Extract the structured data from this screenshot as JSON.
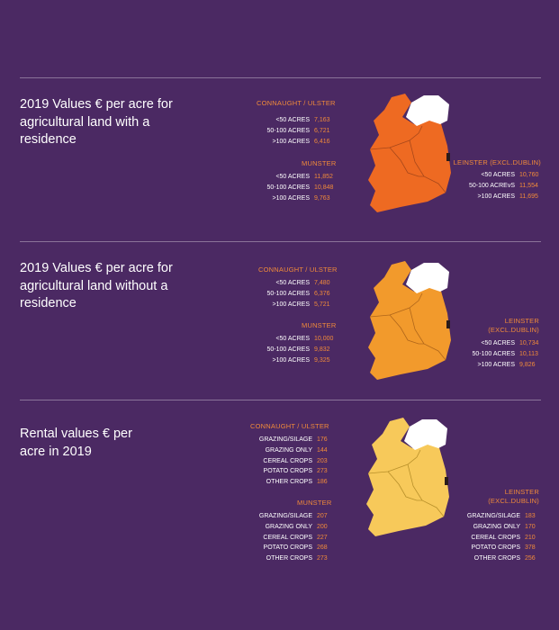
{
  "colors": {
    "background": "#4b2963",
    "accent_text": "#f08a3a",
    "map_section1": "#ee6a22",
    "map_section2": "#f29a2c",
    "map_section3": "#f7c95a",
    "northern_ireland": "#ffffff"
  },
  "sections": [
    {
      "heading": "2019 Values € per acre for agricultural land with  a residence",
      "connaught": {
        "title": "CONNAUGHT / ULSTER",
        "rows": [
          {
            "label": "<50 ACRES",
            "value": "7,163"
          },
          {
            "label": "50-100 ACRES",
            "value": "6,721"
          },
          {
            "label": ">100 ACRES",
            "value": "6,416"
          }
        ]
      },
      "munster": {
        "title": "MUNSTER",
        "rows": [
          {
            "label": "<50 ACRES",
            "value": "11,852"
          },
          {
            "label": "50-100 ACRES",
            "value": "10,848"
          },
          {
            "label": ">100 ACRES",
            "value": "9,763"
          }
        ]
      },
      "leinster": {
        "title": "LEINSTER (EXCL.DUBLIN)",
        "rows": [
          {
            "label": "<50 ACRES",
            "value": "10,760"
          },
          {
            "label": "50-100 ACREvS",
            "value": "11,554"
          },
          {
            "label": ">100 ACRES",
            "value": "11,695"
          }
        ]
      }
    },
    {
      "heading": "2019 Values € per acre for agricultural land without  a residence",
      "connaught": {
        "title": "CONNAUGHT / ULSTER",
        "rows": [
          {
            "label": "<50 ACRES",
            "value": "7,480"
          },
          {
            "label": "50-100 ACRES",
            "value": "6,376"
          },
          {
            "label": ">100 ACRES",
            "value": "5,721"
          }
        ]
      },
      "munster": {
        "title": "MUNSTER",
        "rows": [
          {
            "label": "<50 ACRES",
            "value": "10,000"
          },
          {
            "label": "50-100 ACRES",
            "value": "9,832"
          },
          {
            "label": ">100 ACRES",
            "value": "9,325"
          }
        ]
      },
      "leinster": {
        "title": "LEINSTER (EXCL.DUBLIN)",
        "rows": [
          {
            "label": "<50 ACRES",
            "value": "10,734"
          },
          {
            "label": "50-100 ACRES",
            "value": "10,113"
          },
          {
            "label": ">100 ACRES",
            "value": "9,826"
          }
        ]
      }
    },
    {
      "heading": "Rental values € per acre in 2019",
      "connaught": {
        "title": "CONNAUGHT / ULSTER",
        "rows": [
          {
            "label": "GRAZING/SILAGE",
            "value": "176"
          },
          {
            "label": "GRAZING ONLY",
            "value": "144"
          },
          {
            "label": "CEREAL CROPS",
            "value": "203"
          },
          {
            "label": "POTATO CROPS",
            "value": "273"
          },
          {
            "label": "OTHER CROPS",
            "value": "186"
          }
        ]
      },
      "munster": {
        "title": "MUNSTER",
        "rows": [
          {
            "label": "GRAZING/SILAGE",
            "value": "207"
          },
          {
            "label": "GRAZING ONLY",
            "value": "200"
          },
          {
            "label": "CEREAL CROPS",
            "value": "227"
          },
          {
            "label": "POTATO CROPS",
            "value": "268"
          },
          {
            "label": "OTHER CROPS",
            "value": "273"
          }
        ]
      },
      "leinster": {
        "title": "LEINSTER (EXCL.DUBLIN)",
        "rows": [
          {
            "label": "GRAZING/SILAGE",
            "value": "183"
          },
          {
            "label": "GRAZING ONLY",
            "value": "170"
          },
          {
            "label": "CEREAL CROPS",
            "value": "210"
          },
          {
            "label": "POTATO CROPS",
            "value": "378"
          },
          {
            "label": "OTHER CROPS",
            "value": "256"
          }
        ]
      }
    }
  ]
}
